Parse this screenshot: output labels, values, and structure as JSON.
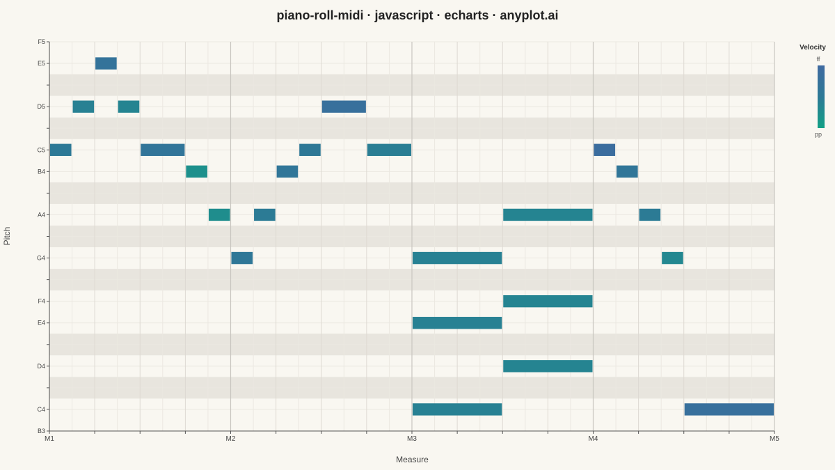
{
  "title": "piano-roll-midi · javascript · echarts · anyplot.ai",
  "legend": {
    "title": "Velocity",
    "max_label": "ff",
    "min_label": "pp",
    "colors": {
      "high": "#3f6aa0",
      "mid": "#2d7996",
      "low": "#12a085"
    }
  },
  "chart_data": {
    "type": "piano-roll",
    "title": "piano-roll-midi · javascript · echarts · anyplot.ai",
    "xlabel": "Measure",
    "ylabel": "Pitch",
    "x_range": [
      0,
      16
    ],
    "x_ticks": [
      {
        "beat": 0,
        "label": "M1"
      },
      {
        "beat": 4,
        "label": "M2"
      },
      {
        "beat": 8,
        "label": "M3"
      },
      {
        "beat": 12,
        "label": "M4"
      },
      {
        "beat": 16,
        "label": "M5"
      }
    ],
    "y_range_midi": [
      59,
      77
    ],
    "y_labels": [
      {
        "midi": 59,
        "label": "B3"
      },
      {
        "midi": 60,
        "label": "C4"
      },
      {
        "midi": 62,
        "label": "D4"
      },
      {
        "midi": 64,
        "label": "E4"
      },
      {
        "midi": 65,
        "label": "F4"
      },
      {
        "midi": 67,
        "label": "G4"
      },
      {
        "midi": 69,
        "label": "A4"
      },
      {
        "midi": 71,
        "label": "B4"
      },
      {
        "midi": 72,
        "label": "C5"
      },
      {
        "midi": 74,
        "label": "D5"
      },
      {
        "midi": 76,
        "label": "E5"
      },
      {
        "midi": 77,
        "label": "F5"
      }
    ],
    "black_keys": [
      61,
      63,
      66,
      68,
      70,
      73,
      75
    ],
    "grid": true,
    "notes": [
      {
        "pitch": 72,
        "start": 0.0,
        "duration": 0.5,
        "velocity": 85
      },
      {
        "pitch": 74,
        "start": 0.5,
        "duration": 0.5,
        "velocity": 80
      },
      {
        "pitch": 76,
        "start": 1.0,
        "duration": 0.5,
        "velocity": 95
      },
      {
        "pitch": 74,
        "start": 1.5,
        "duration": 0.5,
        "velocity": 78
      },
      {
        "pitch": 72,
        "start": 2.0,
        "duration": 1.0,
        "velocity": 92
      },
      {
        "pitch": 71,
        "start": 3.0,
        "duration": 0.5,
        "velocity": 70
      },
      {
        "pitch": 69,
        "start": 3.5,
        "duration": 0.5,
        "velocity": 72
      },
      {
        "pitch": 67,
        "start": 4.0,
        "duration": 0.5,
        "velocity": 88
      },
      {
        "pitch": 69,
        "start": 4.5,
        "duration": 0.5,
        "velocity": 84
      },
      {
        "pitch": 71,
        "start": 5.0,
        "duration": 0.5,
        "velocity": 90
      },
      {
        "pitch": 72,
        "start": 5.5,
        "duration": 0.5,
        "velocity": 86
      },
      {
        "pitch": 74,
        "start": 6.0,
        "duration": 1.0,
        "velocity": 100
      },
      {
        "pitch": 72,
        "start": 7.0,
        "duration": 1.0,
        "velocity": 82
      },
      {
        "pitch": 67,
        "start": 8.0,
        "duration": 2.0,
        "velocity": 80
      },
      {
        "pitch": 64,
        "start": 8.0,
        "duration": 2.0,
        "velocity": 80
      },
      {
        "pitch": 60,
        "start": 8.0,
        "duration": 2.0,
        "velocity": 80
      },
      {
        "pitch": 69,
        "start": 10.0,
        "duration": 2.0,
        "velocity": 78
      },
      {
        "pitch": 65,
        "start": 10.0,
        "duration": 2.0,
        "velocity": 78
      },
      {
        "pitch": 62,
        "start": 10.0,
        "duration": 2.0,
        "velocity": 78
      },
      {
        "pitch": 72,
        "start": 12.0,
        "duration": 0.5,
        "velocity": 105
      },
      {
        "pitch": 71,
        "start": 12.5,
        "duration": 0.5,
        "velocity": 90
      },
      {
        "pitch": 69,
        "start": 13.0,
        "duration": 0.5,
        "velocity": 84
      },
      {
        "pitch": 67,
        "start": 13.5,
        "duration": 0.5,
        "velocity": 76
      },
      {
        "pitch": 60,
        "start": 14.0,
        "duration": 2.0,
        "velocity": 100
      }
    ]
  }
}
